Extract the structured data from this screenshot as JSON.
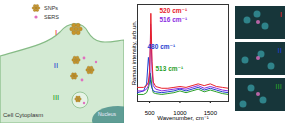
{
  "chart_data": {
    "type": "line",
    "x": [
      300,
      400,
      450,
      480,
      500,
      513,
      516,
      520,
      540,
      560,
      600,
      700,
      800,
      900,
      1000,
      1100,
      1200,
      1300,
      1400,
      1500,
      1600,
      1700,
      1800
    ],
    "series": [
      {
        "color": "#2aa02a",
        "values": [
          0.08,
          0.08,
          0.1,
          0.15,
          0.22,
          0.32,
          0.3,
          0.28,
          0.16,
          0.1,
          0.09,
          0.08,
          0.09,
          0.1,
          0.12,
          0.1,
          0.12,
          0.14,
          0.11,
          0.13,
          0.11,
          0.09,
          0.08
        ]
      },
      {
        "color": "#1f3fd0",
        "values": [
          0.1,
          0.12,
          0.2,
          0.5,
          0.38,
          0.25,
          0.22,
          0.2,
          0.15,
          0.12,
          0.11,
          0.1,
          0.11,
          0.12,
          0.14,
          0.12,
          0.14,
          0.16,
          0.13,
          0.15,
          0.13,
          0.11,
          0.1
        ]
      },
      {
        "color": "#8a2be2",
        "values": [
          0.12,
          0.12,
          0.14,
          0.18,
          0.3,
          0.7,
          0.88,
          0.8,
          0.35,
          0.18,
          0.14,
          0.12,
          0.13,
          0.14,
          0.15,
          0.14,
          0.16,
          0.18,
          0.15,
          0.17,
          0.15,
          0.13,
          0.12
        ]
      },
      {
        "color": "#e8202a",
        "values": [
          0.16,
          0.16,
          0.18,
          0.22,
          0.35,
          0.7,
          0.85,
          1.0,
          0.45,
          0.22,
          0.17,
          0.15,
          0.15,
          0.16,
          0.17,
          0.16,
          0.18,
          0.2,
          0.18,
          0.2,
          0.17,
          0.16,
          0.15
        ]
      }
    ],
    "xlim": [
      300,
      1800
    ],
    "xticks": [
      500,
      1000,
      1500
    ],
    "ylim": [
      0,
      1.1
    ],
    "tick_labels": "x",
    "xlabel": "Wavenumber, cm⁻¹",
    "ylabel": "Raman intensity, arb.un.",
    "annotations": [
      {
        "text": "520 cm⁻¹",
        "color": "#e8202a"
      },
      {
        "text": "516 cm⁻¹",
        "color": "#8a2be2"
      },
      {
        "text": "480 cm⁻¹",
        "color": "#1f3fd0"
      },
      {
        "text": "513 cm⁻¹",
        "color": "#2aa02a"
      }
    ]
  },
  "diagram": {
    "legend": [
      {
        "label": "SNPs",
        "color": "#c8962a"
      },
      {
        "label": "SERS",
        "color": "#e070c0"
      }
    ],
    "regions": [
      {
        "label": "I",
        "color": "#e8202a"
      },
      {
        "label": "II",
        "color": "#1f3fd0"
      },
      {
        "label": "III",
        "color": "#2aa02a"
      }
    ],
    "cytoplasm": "Cell Cytoplasm",
    "nucleus": "Nucleus"
  },
  "images": {
    "panels": [
      {
        "label": "I",
        "color": "#e8202a"
      },
      {
        "label": "II",
        "color": "#1f3fd0"
      },
      {
        "label": "III",
        "color": "#2aa02a"
      }
    ]
  }
}
